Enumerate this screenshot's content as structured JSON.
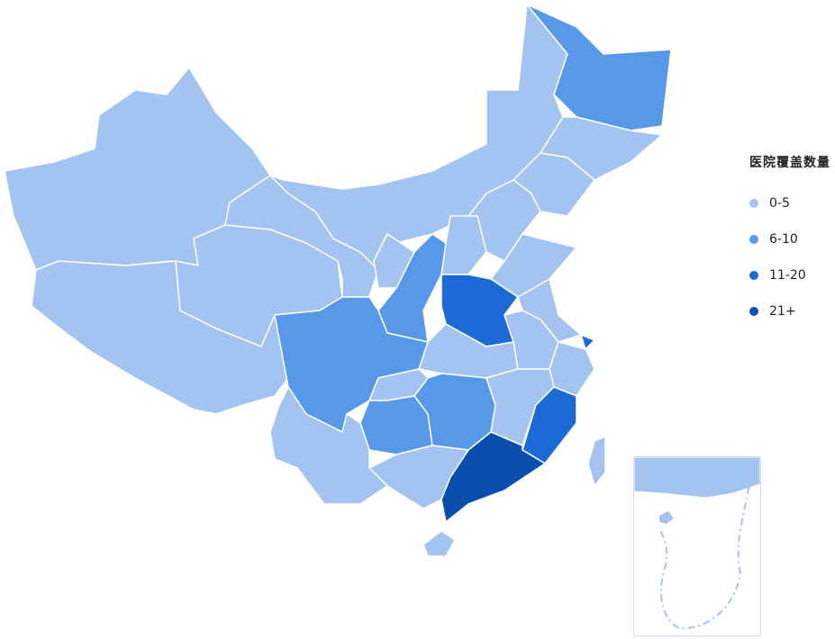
{
  "legend": {
    "title": "医院覆盖数量",
    "items": [
      {
        "label": "0-5",
        "color": "#a3c4f0"
      },
      {
        "label": "6-10",
        "color": "#5898e8"
      },
      {
        "label": "11-20",
        "color": "#1c6ad6"
      },
      {
        "label": "21+",
        "color": "#0a4fad"
      }
    ]
  },
  "border_color": "#ffffff",
  "regions": [
    {
      "id": "xinjiang",
      "level": 0
    },
    {
      "id": "tibet",
      "level": 0
    },
    {
      "id": "qinghai",
      "level": 0
    },
    {
      "id": "gansu",
      "level": 0
    },
    {
      "id": "inner-mongolia",
      "level": 0
    },
    {
      "id": "heilongjiang",
      "level": 1
    },
    {
      "id": "jilin",
      "level": 0
    },
    {
      "id": "liaoning",
      "level": 0
    },
    {
      "id": "hebei",
      "level": 0
    },
    {
      "id": "shanxi",
      "level": 0
    },
    {
      "id": "shaanxi",
      "level": 1
    },
    {
      "id": "ningxia",
      "level": 0
    },
    {
      "id": "shandong",
      "level": 0
    },
    {
      "id": "henan",
      "level": 2
    },
    {
      "id": "jiangsu",
      "level": 0
    },
    {
      "id": "shanghai",
      "level": 2
    },
    {
      "id": "anhui",
      "level": 0
    },
    {
      "id": "zhejiang",
      "level": 0
    },
    {
      "id": "hubei",
      "level": 0
    },
    {
      "id": "sichuan",
      "level": 1
    },
    {
      "id": "chongqing",
      "level": 0
    },
    {
      "id": "guizhou",
      "level": 1
    },
    {
      "id": "hunan",
      "level": 1
    },
    {
      "id": "jiangxi",
      "level": 0
    },
    {
      "id": "fujian",
      "level": 2
    },
    {
      "id": "guangdong",
      "level": 3
    },
    {
      "id": "guangxi",
      "level": 0
    },
    {
      "id": "yunnan",
      "level": 0
    },
    {
      "id": "hainan",
      "level": 0
    },
    {
      "id": "taiwan",
      "level": 0
    }
  ]
}
